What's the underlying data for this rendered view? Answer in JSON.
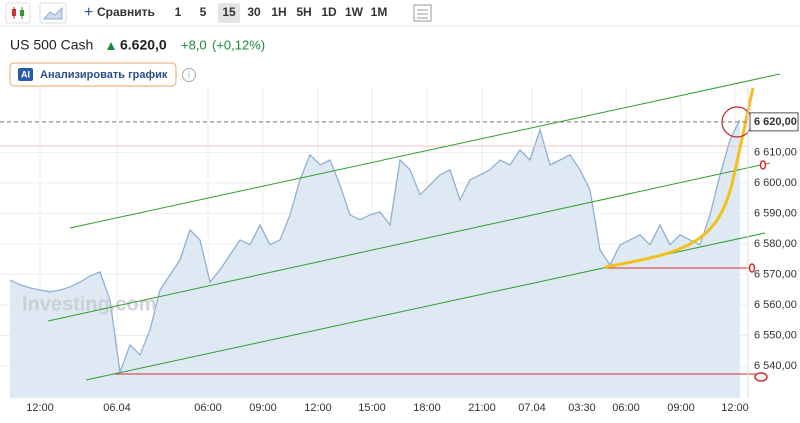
{
  "toolbar": {
    "compare": "Сравнить",
    "intervals": [
      "1",
      "5",
      "15",
      "30",
      "1H",
      "5H",
      "1D",
      "1W",
      "1M"
    ],
    "active_interval": 2
  },
  "header": {
    "symbol": "US 500 Cash",
    "price": "6.620,0",
    "change": "+8,0",
    "change_pct": "(+0,12%)"
  },
  "ai_button": {
    "badge": "AI",
    "label": "Анализировать график"
  },
  "watermark": "Investing.com",
  "chart_data": {
    "type": "area",
    "color": "#8fb1d3",
    "fill": "#dfe9f4",
    "grid": true,
    "x": [
      0,
      1,
      2,
      3,
      4,
      5,
      6,
      7,
      8,
      9,
      10,
      11,
      12,
      13,
      14,
      15,
      16,
      17,
      18,
      19,
      20,
      21,
      22,
      23,
      24,
      25,
      26,
      27,
      28,
      29,
      30,
      31,
      32,
      33,
      34,
      35,
      36,
      37,
      38,
      39,
      40,
      41,
      42,
      43,
      44,
      45,
      46,
      47,
      48,
      49,
      50,
      51,
      52,
      53,
      54,
      55,
      56,
      57,
      58,
      59,
      60,
      61,
      62,
      63,
      64,
      65,
      66,
      67,
      68,
      69,
      70,
      71,
      72,
      73
    ],
    "values": [
      6568.2,
      6566.6,
      6565.6,
      6564.9,
      6564.3,
      6564.9,
      6565.9,
      6567.5,
      6569.5,
      6570.8,
      6561.6,
      6538.0,
      6546.9,
      6543.6,
      6551.8,
      6564.9,
      6569.8,
      6574.8,
      6584.6,
      6581.3,
      6567.5,
      6571.5,
      6576.4,
      6581.3,
      6579.7,
      6586.2,
      6579.7,
      6581.3,
      6589.5,
      6601.0,
      6609.2,
      6605.9,
      6607.5,
      6599.3,
      6589.5,
      6587.9,
      6589.5,
      6590.5,
      6586.2,
      6607.5,
      6604.3,
      6596.1,
      6599.3,
      6602.6,
      6604.3,
      6594.4,
      6601.0,
      6602.6,
      6604.3,
      6607.5,
      6605.9,
      6610.8,
      6607.5,
      6617.4,
      6605.9,
      6607.5,
      6609.2,
      6604.3,
      6597.7,
      6578.0,
      6573.1,
      6579.7,
      6581.3,
      6583.0,
      6579.7,
      6586.2,
      6579.7,
      6583.0,
      6581.3,
      6579.7,
      6589.5,
      6602.6,
      6614.1,
      6620.7
    ],
    "xlim": [
      -1,
      73.8
    ],
    "xticks": [
      {
        "value": 3,
        "label": "12:00"
      },
      {
        "value": 10.7,
        "label": "06.04"
      },
      {
        "value": 19.8,
        "label": "06:00"
      },
      {
        "value": 25.3,
        "label": "09:00"
      },
      {
        "value": 30.8,
        "label": "12:00"
      },
      {
        "value": 36.2,
        "label": "15:00"
      },
      {
        "value": 41.7,
        "label": "18:00"
      },
      {
        "value": 47.2,
        "label": "21:00"
      },
      {
        "value": 52.2,
        "label": "07.04"
      },
      {
        "value": 57.2,
        "label": "03:30"
      },
      {
        "value": 61.6,
        "label": "06:00"
      },
      {
        "value": 67.1,
        "label": "09:00"
      },
      {
        "value": 72.5,
        "label": "12:00"
      }
    ],
    "ylim": [
      6529.5,
      6631.1
    ],
    "yticks": [
      {
        "value": 6540,
        "label": "6 540,00"
      },
      {
        "value": 6550,
        "label": "6 550,00"
      },
      {
        "value": 6560,
        "label": "6 560,00"
      },
      {
        "value": 6570,
        "label": "6 570,00"
      },
      {
        "value": 6580,
        "label": "6 580,00"
      },
      {
        "value": 6590,
        "label": "6 590,00"
      },
      {
        "value": 6600,
        "label": "6 600,00"
      },
      {
        "value": 6610,
        "label": "6 610,00"
      }
    ],
    "last_price": {
      "value": 6620,
      "label": "6 620,00"
    }
  }
}
